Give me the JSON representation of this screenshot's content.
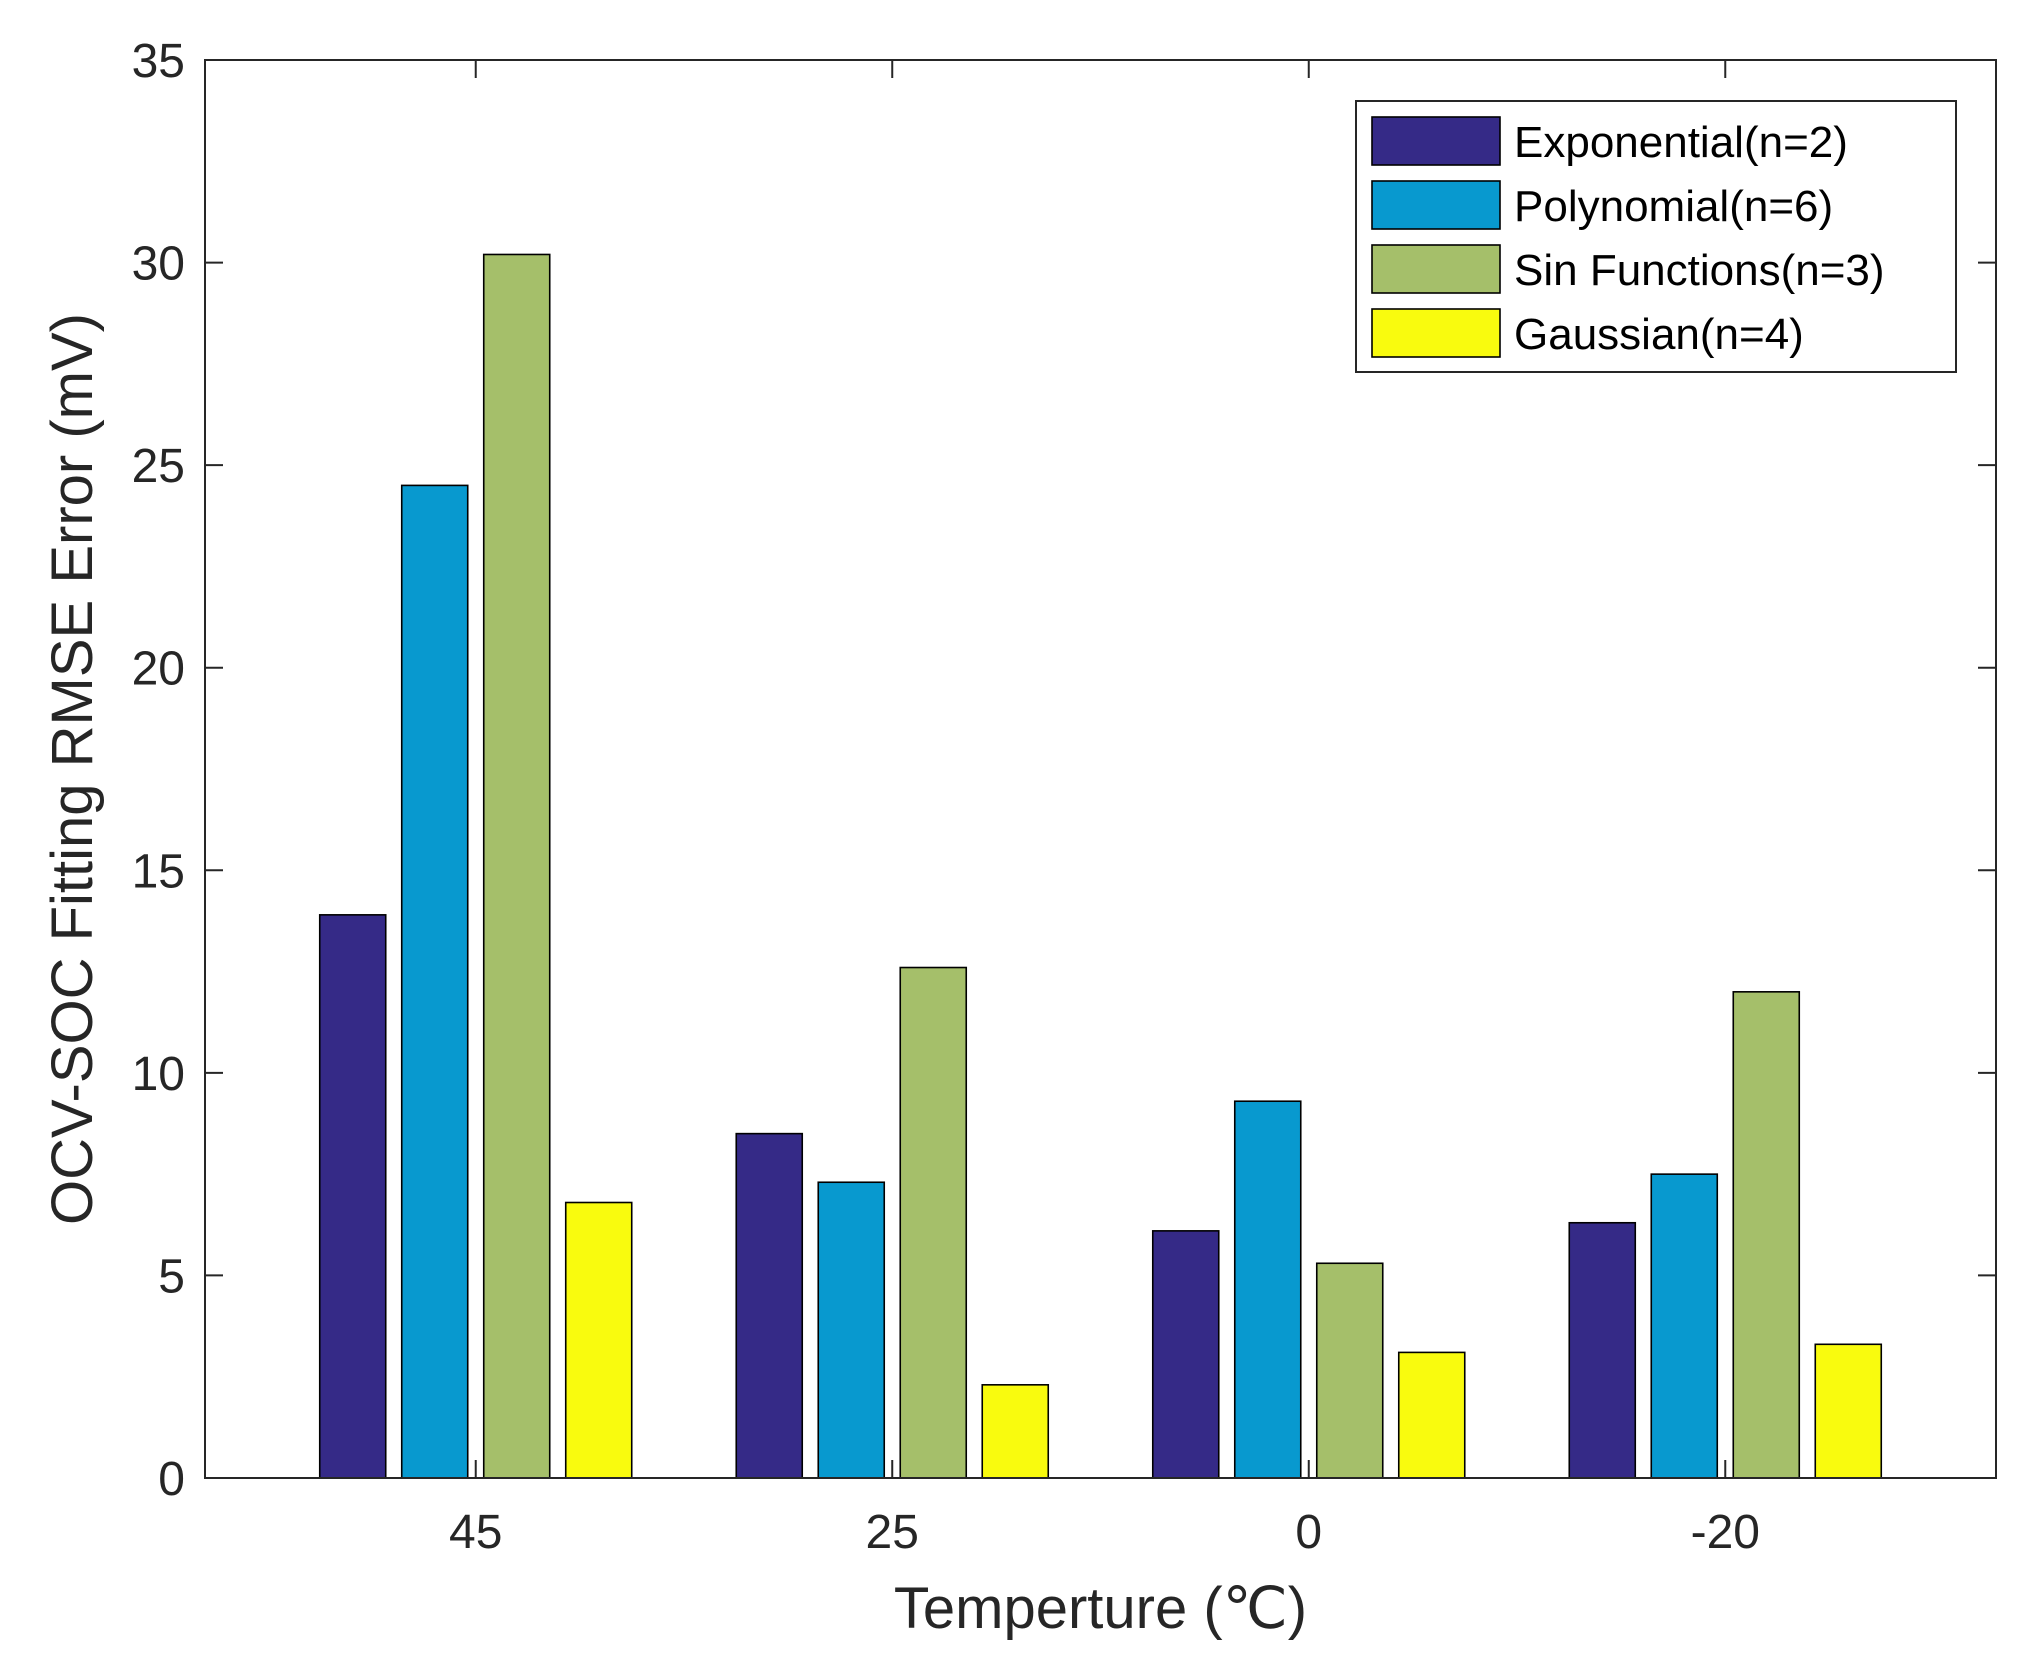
{
  "chart_data": {
    "type": "bar",
    "title": "",
    "xlabel": "Temperture (℃)",
    "ylabel": "OCV-SOC Fitting RMSE Error (mV)",
    "categories": [
      "45",
      "25",
      "0",
      "-20"
    ],
    "ylim": [
      0,
      35
    ],
    "yticks": [
      "0",
      "5",
      "10",
      "15",
      "20",
      "25",
      "30",
      "35"
    ],
    "legend_position": "top-right",
    "series": [
      {
        "name": "Exponential(n=2)",
        "color": "#352a87",
        "values": [
          13.9,
          8.5,
          6.1,
          6.3
        ]
      },
      {
        "name": "Polynomial(n=6)",
        "color": "#0899cf",
        "values": [
          24.5,
          7.3,
          9.3,
          7.5
        ]
      },
      {
        "name": "Sin Functions(n=3)",
        "color": "#a5bf6a",
        "values": [
          30.2,
          12.6,
          5.3,
          12.0
        ]
      },
      {
        "name": "Gaussian(n=4)",
        "color": "#f9fb0e",
        "values": [
          6.8,
          2.3,
          3.1,
          3.3
        ]
      }
    ]
  }
}
